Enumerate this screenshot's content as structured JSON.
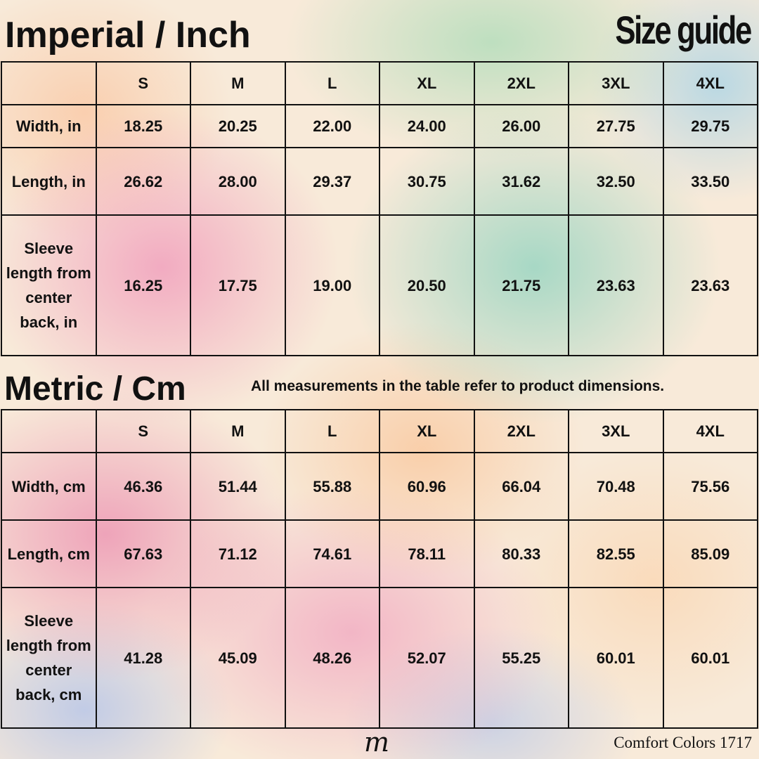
{
  "imperial": {
    "title": "Imperial / Inch",
    "sizes": [
      "S",
      "M",
      "L",
      "XL",
      "2XL",
      "3XL",
      "4XL"
    ],
    "rows": [
      {
        "label": "Width, in",
        "values": [
          "18.25",
          "20.25",
          "22.00",
          "24.00",
          "26.00",
          "27.75",
          "29.75"
        ]
      },
      {
        "label": "Length, in",
        "values": [
          "26.62",
          "28.00",
          "29.37",
          "30.75",
          "31.62",
          "32.50",
          "33.50"
        ]
      },
      {
        "label": "Sleeve length from center back, in",
        "values": [
          "16.25",
          "17.75",
          "19.00",
          "20.50",
          "21.75",
          "23.63",
          "23.63"
        ]
      }
    ]
  },
  "size_guide_label": "Size guide",
  "metric": {
    "title": "Metric / Cm",
    "sizes": [
      "S",
      "M",
      "L",
      "XL",
      "2XL",
      "3XL",
      "4XL"
    ],
    "rows": [
      {
        "label": "Width, cm",
        "values": [
          "46.36",
          "51.44",
          "55.88",
          "60.96",
          "66.04",
          "70.48",
          "75.56"
        ]
      },
      {
        "label": "Length, cm",
        "values": [
          "67.63",
          "71.12",
          "74.61",
          "78.11",
          "80.33",
          "82.55",
          "85.09"
        ]
      },
      {
        "label": "Sleeve length from center back, cm",
        "values": [
          "41.28",
          "45.09",
          "48.26",
          "52.07",
          "55.25",
          "60.01",
          "60.01"
        ]
      }
    ]
  },
  "note": "All measurements in the table refer to product dimensions.",
  "logo_letter": "m",
  "footer_brand": "Comfort Colors 1717"
}
